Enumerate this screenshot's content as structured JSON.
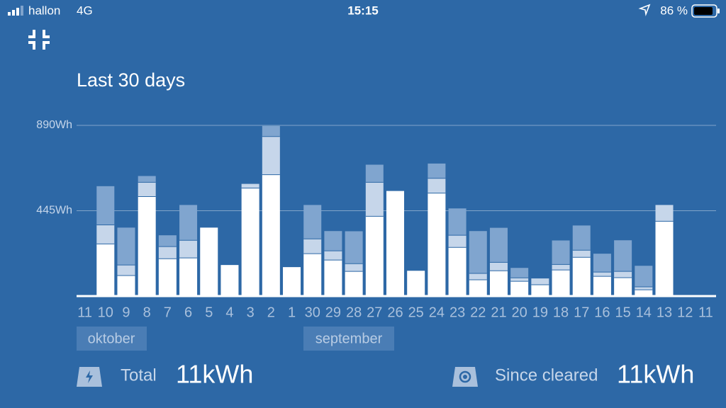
{
  "status_bar": {
    "carrier": "hallon",
    "network": "4G",
    "time": "15:15",
    "battery": "86 %"
  },
  "chart_data": {
    "type": "bar",
    "stacked": true,
    "title": "Last 30 days",
    "categories": [
      "11",
      "10",
      "9",
      "8",
      "7",
      "6",
      "5",
      "4",
      "3",
      "2",
      "1",
      "30",
      "29",
      "28",
      "27",
      "26",
      "25",
      "24",
      "23",
      "22",
      "21",
      "20",
      "19",
      "18",
      "17",
      "16",
      "15",
      "14",
      "13",
      "12",
      "11"
    ],
    "series": [
      {
        "color": "#ffffff",
        "values": [
          null,
          272,
          107,
          519,
          195,
          199,
          357,
          162,
          563,
          633,
          151,
          221,
          188,
          129,
          416,
          548,
          132,
          537,
          254,
          85,
          132,
          77,
          59,
          136,
          202,
          103,
          96,
          33,
          390,
          null,
          null
        ]
      },
      {
        "color": "#c6d6ea",
        "values": [
          null,
          99,
          55,
          74,
          63,
          92,
          0,
          0,
          22,
          199,
          0,
          77,
          48,
          40,
          177,
          0,
          0,
          77,
          63,
          33,
          44,
          18,
          33,
          29,
          37,
          22,
          33,
          15,
          85,
          null,
          null
        ]
      },
      {
        "color": "#80a5cf",
        "values": [
          null,
          202,
          195,
          33,
          59,
          184,
          0,
          0,
          0,
          55,
          0,
          177,
          103,
          169,
          92,
          0,
          0,
          77,
          140,
          221,
          180,
          52,
          0,
          125,
          129,
          96,
          162,
          110,
          0,
          null,
          null
        ]
      }
    ],
    "ylim": [
      0,
      890
    ],
    "yticks": [
      {
        "value": 445,
        "label": "445Wh"
      },
      {
        "value": 890,
        "label": "890Wh"
      }
    ],
    "grid": true,
    "month_labels": [
      "oktober",
      "september"
    ]
  },
  "summary": {
    "total_label": "Total",
    "total_value": "11kWh",
    "since_cleared_label": "Since cleared",
    "since_cleared_value": "11kWh"
  }
}
